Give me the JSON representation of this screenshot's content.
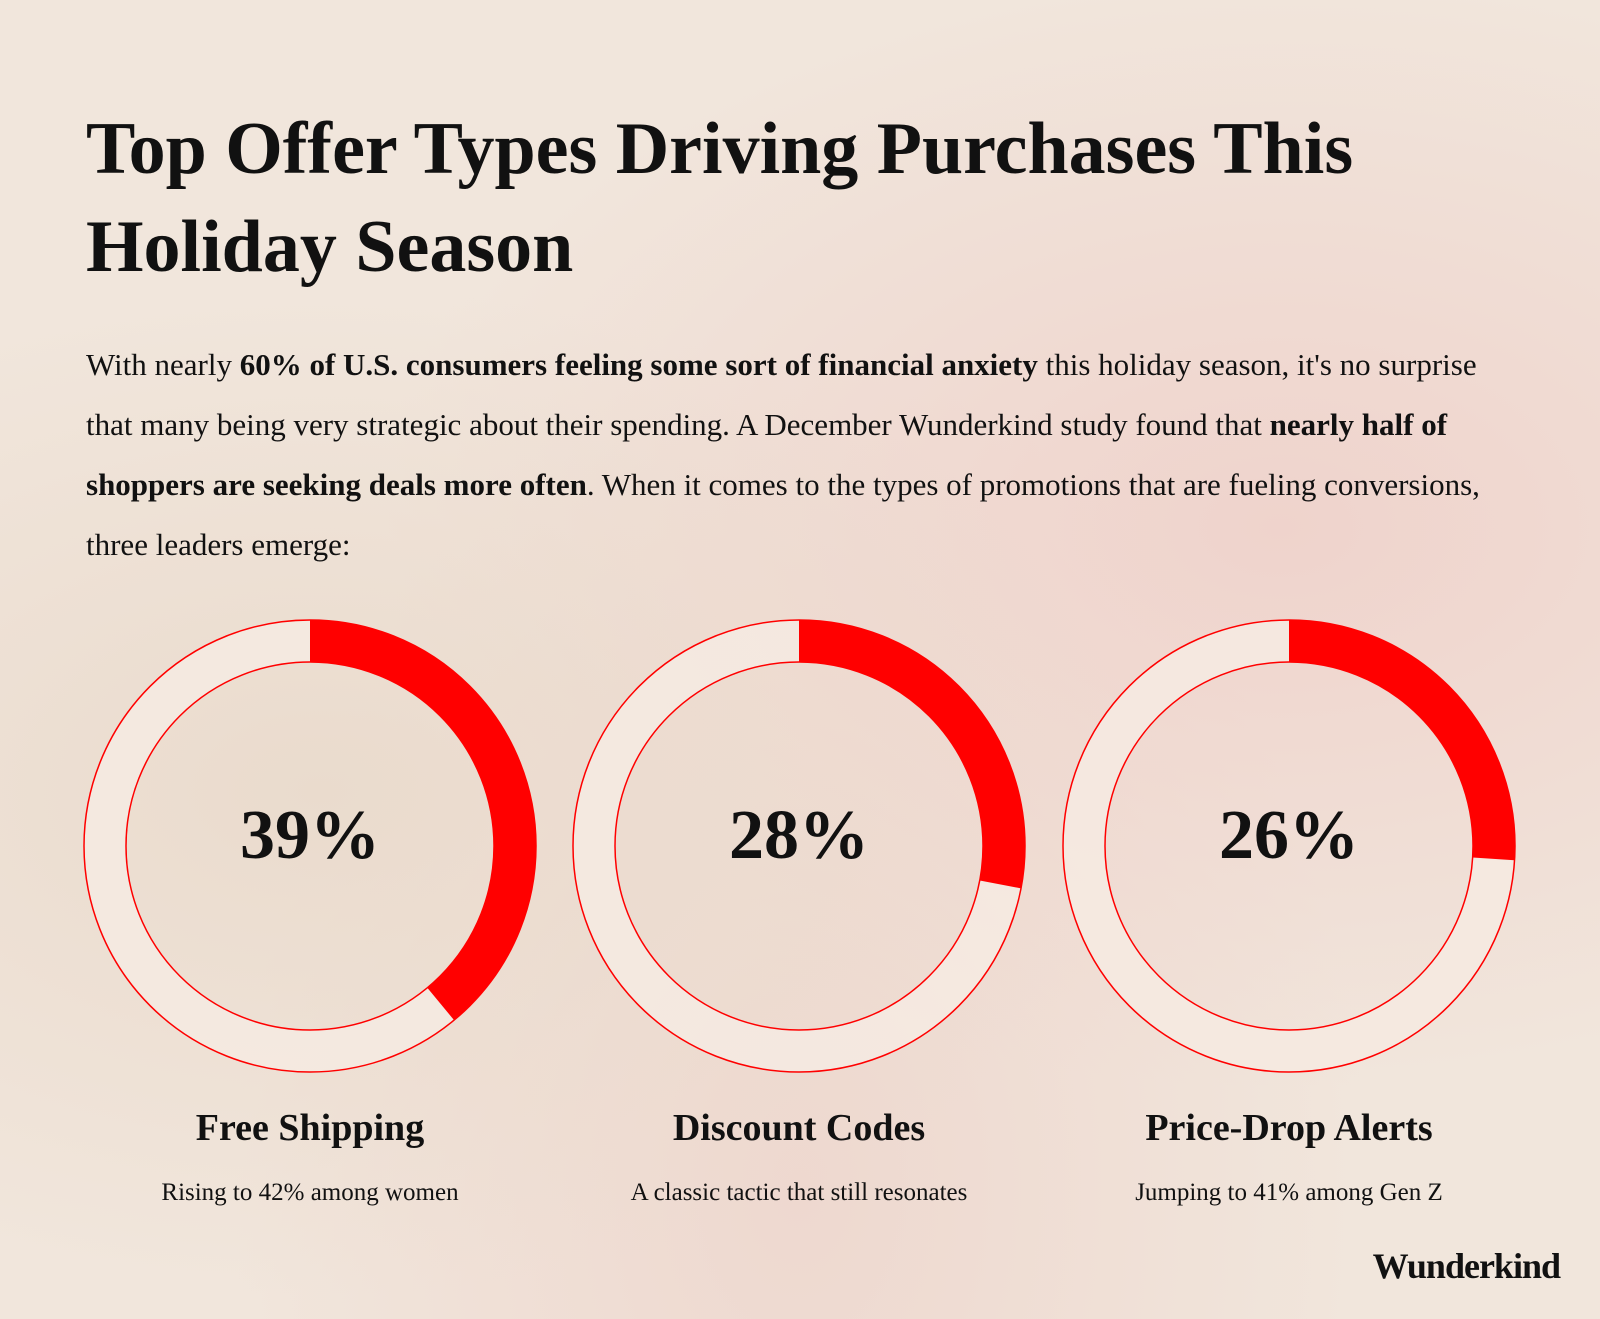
{
  "header": {
    "title": "Top Offer Types Driving Purchases This Holiday Season"
  },
  "paragraph": [
    {
      "text": "With nearly ",
      "bold": false
    },
    {
      "text": "60% of U.S. consumers feeling some sort of financial anxiety",
      "bold": true
    },
    {
      "text": " this holiday season, it's no surprise that many being very strategic about their spending. A December Wunderkind study found that ",
      "bold": false
    },
    {
      "text": "nearly half of shoppers are seeking deals more often",
      "bold": true
    },
    {
      "text": ". When it comes to the types of promotions that are fueling conversions, three leaders emerge:",
      "bold": false
    }
  ],
  "chart_data": [
    {
      "type": "donut",
      "title": "Free Shipping",
      "subtitle": "Rising to 42% among women",
      "values": [
        39
      ],
      "value_labels": [
        "39%"
      ],
      "color": "#ff0000"
    },
    {
      "type": "donut",
      "title": "Discount Codes",
      "subtitle": "A classic tactic that still resonates",
      "values": [
        28
      ],
      "value_labels": [
        "28%"
      ],
      "color": "#ff0000"
    },
    {
      "type": "donut",
      "title": "Price-Drop Alerts",
      "subtitle": "Jumping to 41% among Gen Z",
      "values": [
        26
      ],
      "value_labels": [
        "26%"
      ],
      "color": "#ff0000"
    }
  ],
  "footer": {
    "brand": "Wunderkind"
  }
}
